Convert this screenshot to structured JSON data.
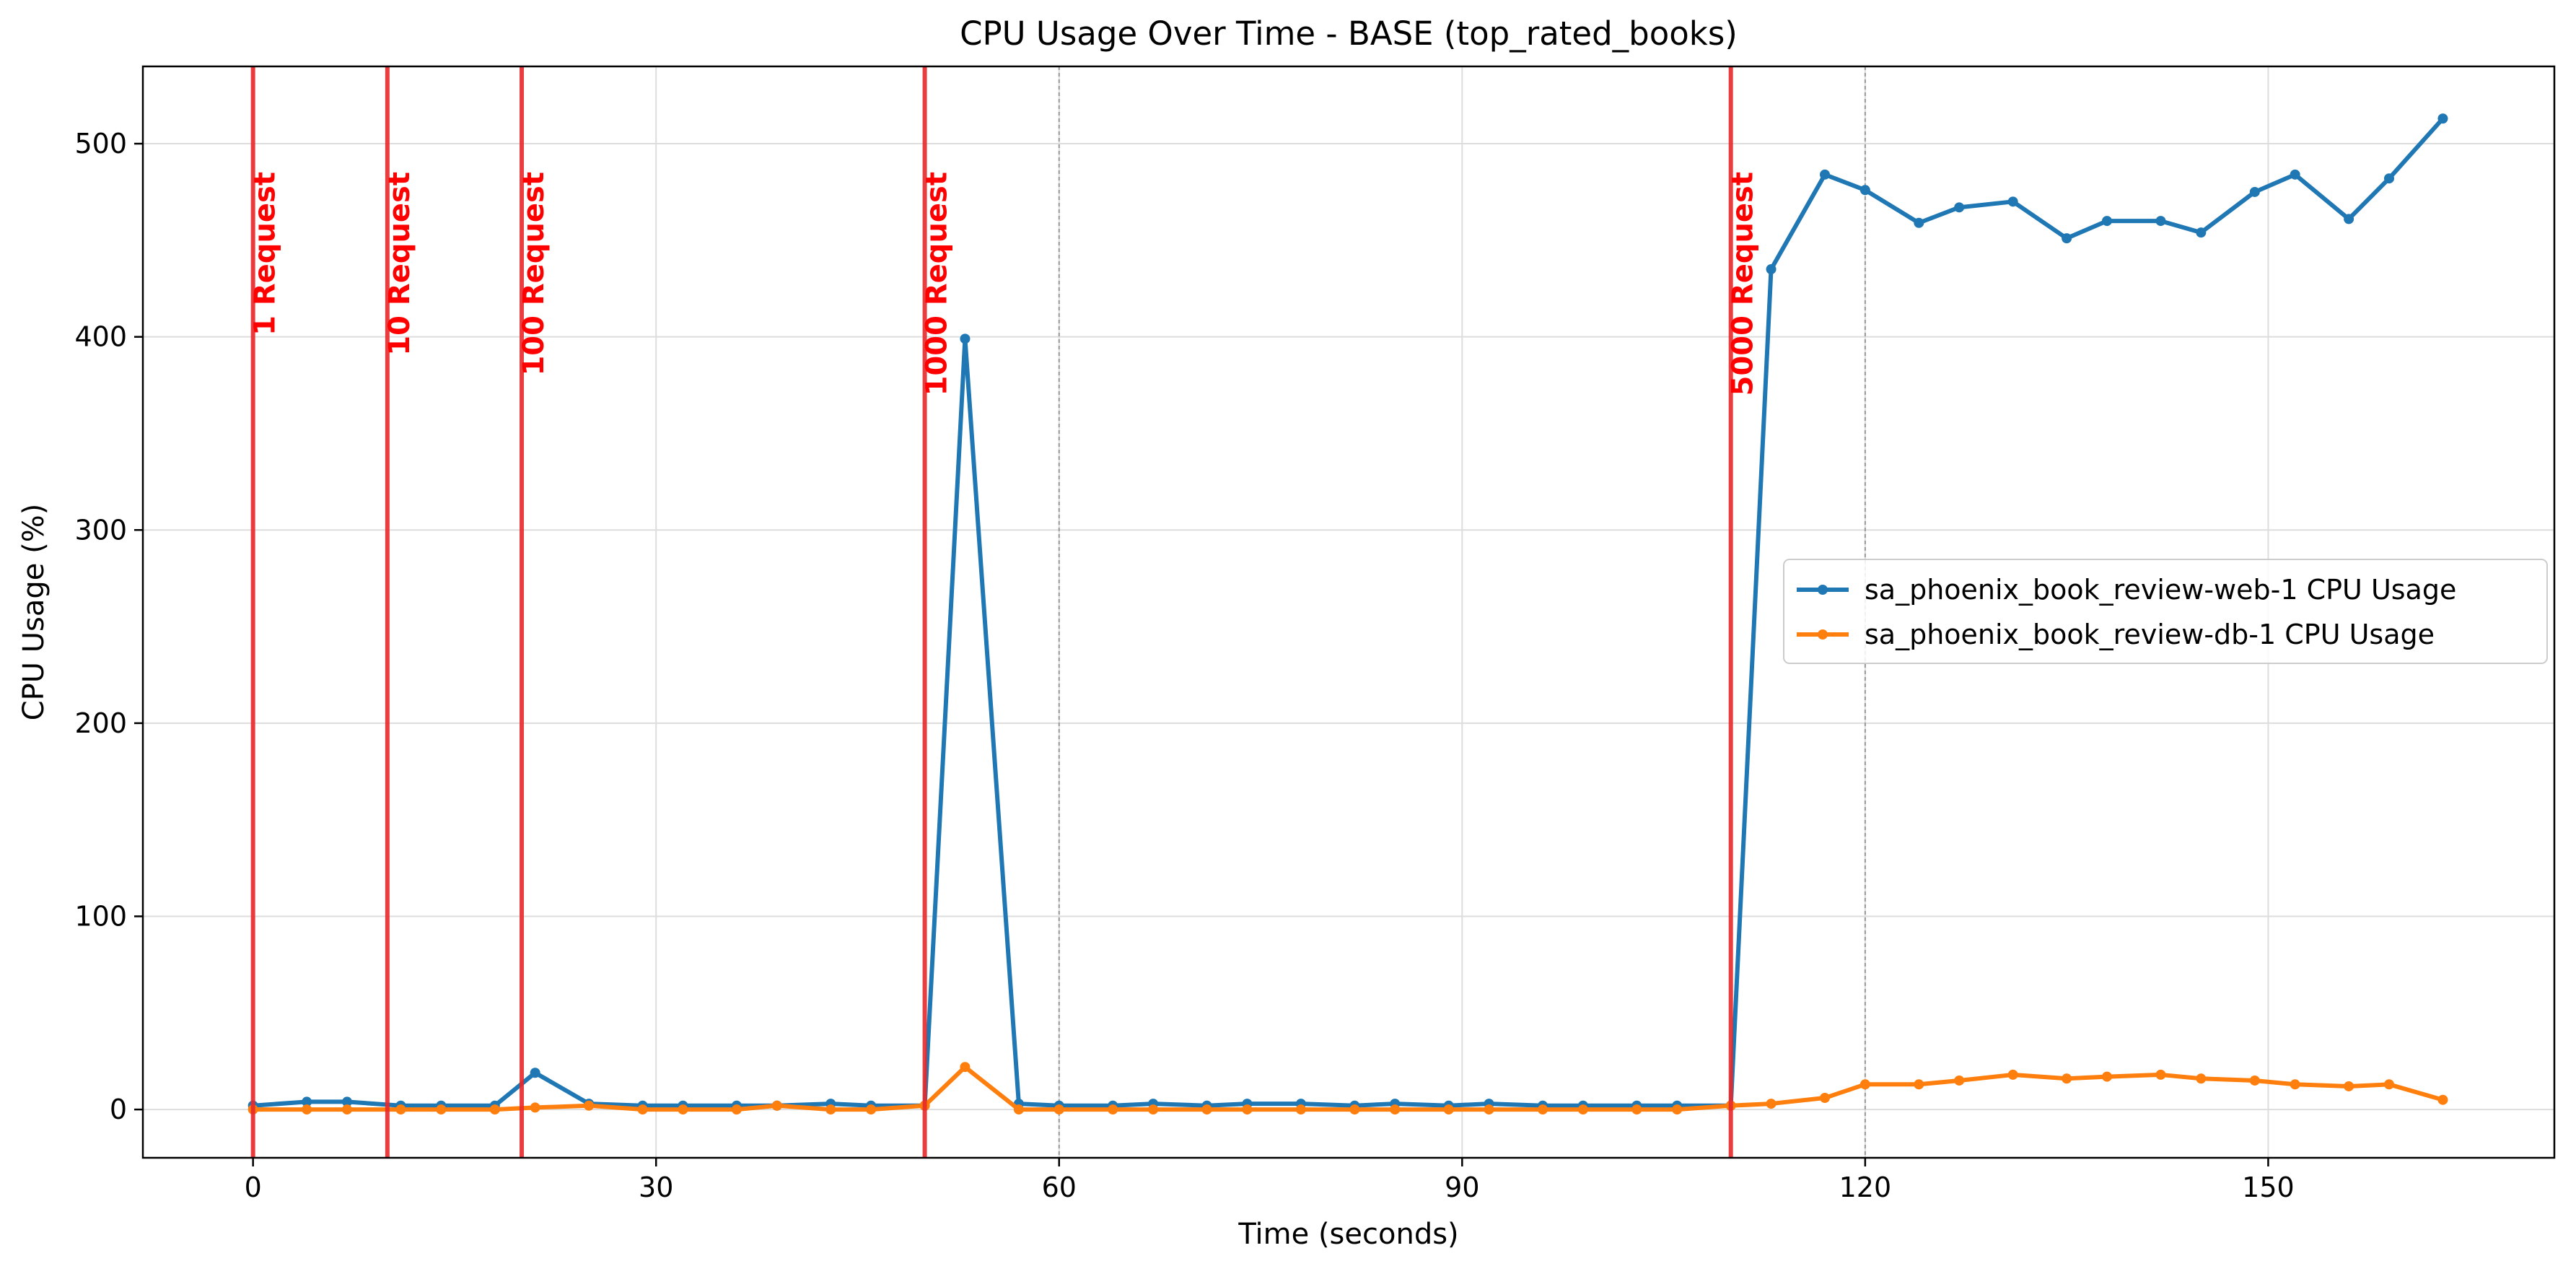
{
  "chart_data": {
    "type": "line",
    "title": "CPU Usage Over Time - BASE (top_rated_books)",
    "xlabel": "Time (seconds)",
    "ylabel": "CPU Usage (%)",
    "xlim": [
      -8.2,
      171.3
    ],
    "ylim": [
      -25,
      540
    ],
    "xticks": [
      0,
      30,
      60,
      90,
      120,
      150
    ],
    "yticks": [
      0,
      100,
      200,
      300,
      400,
      500
    ],
    "grid": true,
    "legend_position": "center-right",
    "series": [
      {
        "name": "sa_phoenix_book_review-web-1 CPU Usage",
        "color": "#1f77b4",
        "x": [
          0,
          4,
          7,
          11,
          14,
          18,
          21,
          25,
          29,
          32,
          36,
          39,
          43,
          46,
          50,
          53,
          57,
          60,
          64,
          67,
          71,
          74,
          78,
          82,
          85,
          89,
          92,
          96,
          99,
          103,
          106,
          110,
          113,
          117,
          120,
          124,
          127,
          131,
          135,
          138,
          142,
          145,
          149,
          152,
          156,
          159,
          163
        ],
        "y": [
          2,
          4,
          4,
          2,
          2,
          2,
          19,
          3,
          2,
          2,
          2,
          2,
          3,
          2,
          2,
          399,
          3,
          2,
          2,
          3,
          2,
          3,
          3,
          2,
          3,
          2,
          3,
          2,
          2,
          2,
          2,
          2,
          435,
          484,
          476,
          459,
          467,
          470,
          451,
          460,
          460,
          454,
          475,
          484,
          461,
          482,
          513
        ]
      },
      {
        "name": "sa_phoenix_book_review-db-1 CPU Usage",
        "color": "#ff7f0e",
        "x": [
          0,
          4,
          7,
          11,
          14,
          18,
          21,
          25,
          29,
          32,
          36,
          39,
          43,
          46,
          50,
          53,
          57,
          60,
          64,
          67,
          71,
          74,
          78,
          82,
          85,
          89,
          92,
          96,
          99,
          103,
          106,
          110,
          113,
          117,
          120,
          124,
          127,
          131,
          135,
          138,
          142,
          145,
          149,
          152,
          156,
          159,
          163
        ],
        "y": [
          0,
          0,
          0,
          0,
          0,
          0,
          1,
          2,
          0,
          0,
          0,
          2,
          0,
          0,
          2,
          22,
          0,
          0,
          0,
          0,
          0,
          0,
          0,
          0,
          0,
          0,
          0,
          0,
          0,
          0,
          0,
          2,
          3,
          6,
          13,
          13,
          15,
          18,
          16,
          17,
          18,
          16,
          15,
          13,
          12,
          13,
          5
        ]
      }
    ],
    "markers": [
      {
        "x": 0,
        "label": "1 Request"
      },
      {
        "x": 10,
        "label": "10 Request"
      },
      {
        "x": 20,
        "label": "100 Request"
      },
      {
        "x": 50,
        "label": "1000 Request"
      },
      {
        "x": 110,
        "label": "5000 Request"
      }
    ],
    "marker_color": "#e8292b",
    "marker_text_color": "#ff0000",
    "reference_lines": [
      60,
      120
    ]
  }
}
